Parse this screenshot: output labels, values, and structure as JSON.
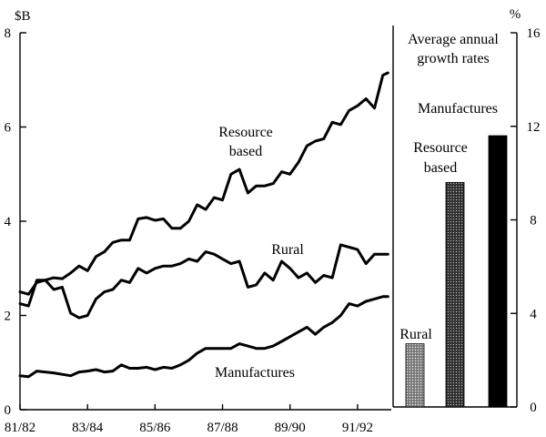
{
  "chart_data": [
    {
      "type": "line",
      "ylabel": "$B",
      "ylim": [
        0,
        8
      ],
      "yticks": [
        0,
        2,
        4,
        6,
        8
      ],
      "xlim": [
        1981.5,
        1992.5
      ],
      "xtick_labels": [
        {
          "x": 1981.5,
          "label": "81/82"
        },
        {
          "x": 1983.5,
          "label": "83/84"
        },
        {
          "x": 1985.5,
          "label": "85/86"
        },
        {
          "x": 1987.5,
          "label": "87/88"
        },
        {
          "x": 1989.5,
          "label": "89/90"
        },
        {
          "x": 1991.5,
          "label": "91/92"
        }
      ],
      "series": [
        {
          "name": "Resource based",
          "x": [
            1981.5,
            1981.75,
            1982,
            1982.25,
            1982.5,
            1982.75,
            1983,
            1983.25,
            1983.5,
            1983.75,
            1984,
            1984.25,
            1984.5,
            1984.75,
            1985,
            1985.25,
            1985.5,
            1985.75,
            1986,
            1986.25,
            1986.5,
            1986.75,
            1987,
            1987.25,
            1987.5,
            1987.75,
            1988,
            1988.25,
            1988.5,
            1988.75,
            1989,
            1989.25,
            1989.5,
            1989.75,
            1990,
            1990.25,
            1990.5,
            1990.75,
            1991,
            1991.25,
            1991.5,
            1991.75,
            1992,
            1992.25,
            1992.4
          ],
          "values": [
            2.5,
            2.45,
            2.7,
            2.75,
            2.8,
            2.78,
            2.9,
            3.05,
            2.95,
            3.25,
            3.35,
            3.55,
            3.6,
            3.6,
            4.05,
            4.08,
            4.02,
            4.05,
            3.85,
            3.85,
            4.0,
            4.35,
            4.25,
            4.5,
            4.45,
            5.0,
            5.1,
            4.6,
            4.75,
            4.75,
            4.8,
            5.05,
            5.0,
            5.25,
            5.6,
            5.7,
            5.75,
            6.1,
            6.05,
            6.35,
            6.45,
            6.6,
            6.4,
            7.1,
            7.15
          ]
        },
        {
          "name": "Rural",
          "x": [
            1981.5,
            1981.75,
            1982,
            1982.25,
            1982.5,
            1982.75,
            1983,
            1983.25,
            1983.5,
            1983.75,
            1984,
            1984.25,
            1984.5,
            1984.75,
            1985,
            1985.25,
            1985.5,
            1985.75,
            1986,
            1986.25,
            1986.5,
            1986.75,
            1987,
            1987.25,
            1987.5,
            1987.75,
            1988,
            1988.25,
            1988.5,
            1988.75,
            1989,
            1989.25,
            1989.5,
            1989.75,
            1990,
            1990.25,
            1990.5,
            1990.75,
            1991,
            1991.25,
            1991.5,
            1991.75,
            1992,
            1992.25,
            1992.4
          ],
          "values": [
            2.25,
            2.2,
            2.75,
            2.75,
            2.55,
            2.6,
            2.05,
            1.95,
            2.0,
            2.35,
            2.5,
            2.55,
            2.75,
            2.7,
            3.0,
            2.9,
            3.0,
            3.05,
            3.05,
            3.1,
            3.2,
            3.15,
            3.35,
            3.3,
            3.2,
            3.1,
            3.15,
            2.6,
            2.65,
            2.9,
            2.75,
            3.15,
            3.0,
            2.8,
            2.9,
            2.7,
            2.85,
            2.8,
            3.5,
            3.45,
            3.4,
            3.1,
            3.3,
            3.3,
            3.3
          ]
        },
        {
          "name": "Manufactures",
          "x": [
            1981.5,
            1981.75,
            1982,
            1982.25,
            1982.5,
            1982.75,
            1983,
            1983.25,
            1983.5,
            1983.75,
            1984,
            1984.25,
            1984.5,
            1984.75,
            1985,
            1985.25,
            1985.5,
            1985.75,
            1986,
            1986.25,
            1986.5,
            1986.75,
            1987,
            1987.25,
            1987.5,
            1987.75,
            1988,
            1988.25,
            1988.5,
            1988.75,
            1989,
            1989.25,
            1989.5,
            1989.75,
            1990,
            1990.25,
            1990.5,
            1990.75,
            1991,
            1991.25,
            1991.5,
            1991.75,
            1992,
            1992.25,
            1992.4
          ],
          "values": [
            0.72,
            0.7,
            0.82,
            0.8,
            0.78,
            0.75,
            0.72,
            0.8,
            0.82,
            0.85,
            0.8,
            0.82,
            0.95,
            0.88,
            0.88,
            0.9,
            0.85,
            0.9,
            0.88,
            0.95,
            1.05,
            1.2,
            1.3,
            1.3,
            1.3,
            1.3,
            1.4,
            1.35,
            1.3,
            1.3,
            1.35,
            1.45,
            1.55,
            1.65,
            1.75,
            1.6,
            1.75,
            1.85,
            2.0,
            2.25,
            2.2,
            2.3,
            2.35,
            2.4,
            2.4
          ]
        }
      ],
      "annotations": [
        {
          "series": "Resource based",
          "lines": [
            "Resource",
            "based"
          ]
        },
        {
          "series": "Rural",
          "lines": [
            "Rural"
          ]
        },
        {
          "series": "Manufactures",
          "lines": [
            "Manufactures"
          ]
        }
      ],
      "grid": false,
      "legend": "none"
    },
    {
      "type": "bar",
      "title": "Average annual growth rates",
      "title_lines": [
        "Average annual",
        "growth rates"
      ],
      "ylabel": "%",
      "ylim": [
        0,
        16
      ],
      "yticks": [
        0,
        4,
        8,
        12,
        16
      ],
      "categories": [
        "Rural",
        "Resource based",
        "Manufactures"
      ],
      "category_label_lines": [
        [
          "Rural"
        ],
        [
          "Resource",
          "based"
        ],
        [
          "Manufactures"
        ]
      ],
      "values": [
        2.7,
        9.6,
        11.6
      ],
      "colors": [
        "#777777",
        "#3a3a3a",
        "#000000"
      ],
      "grid": false,
      "legend": "none"
    }
  ]
}
